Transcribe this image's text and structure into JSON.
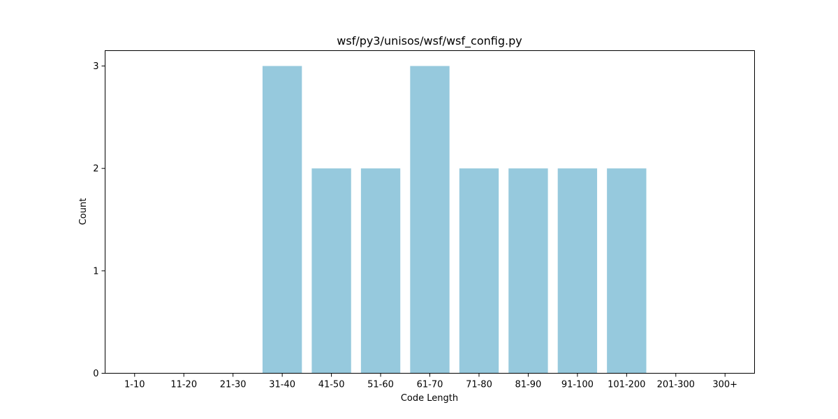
{
  "chart_data": {
    "type": "bar",
    "title": "wsf/py3/unisos/wsf/wsf_config.py",
    "xlabel": "Code Length",
    "ylabel": "Count",
    "categories": [
      "1-10",
      "11-20",
      "21-30",
      "31-40",
      "41-50",
      "51-60",
      "61-70",
      "71-80",
      "81-90",
      "91-100",
      "101-200",
      "201-300",
      "300+"
    ],
    "values": [
      0,
      0,
      0,
      3,
      2,
      2,
      3,
      2,
      2,
      2,
      2,
      0,
      0
    ],
    "yticks": [
      0,
      1,
      2,
      3
    ],
    "ylim": [
      0,
      3.15
    ],
    "grid": false,
    "legend": "none",
    "bar_color": "#96c9dd"
  }
}
